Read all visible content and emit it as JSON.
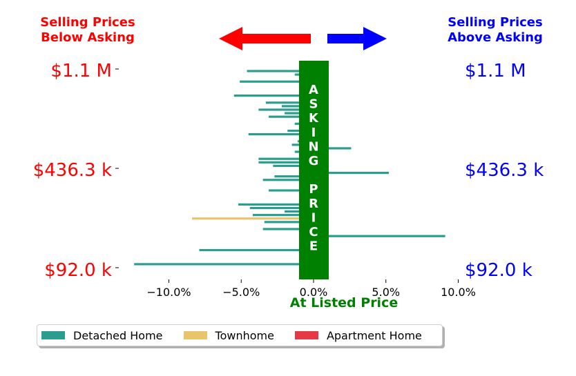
{
  "header": {
    "left_title": [
      "Selling Prices",
      "Below Asking"
    ],
    "right_title": [
      "Selling Prices",
      "Above Asking"
    ]
  },
  "colors": {
    "below": "#ff0000",
    "above": "#0000ff",
    "asking": "#008000",
    "detached": "#2a9d8f",
    "townhome": "#e9c46a",
    "apartment": "#e63946"
  },
  "chart_data": {
    "type": "bar",
    "orientation": "horizontal",
    "xlabel": "At Listed Price",
    "xlim": [
      -12.5,
      10.0
    ],
    "x_ticks": [
      -10,
      -5,
      0,
      5,
      10
    ],
    "x_tick_labels": [
      "−10.0%",
      "−5.0%",
      "0.0%",
      "5.0%",
      "10.0%"
    ],
    "y_tick_labels_left": [
      "$1.1 M",
      "$436.3 k",
      "$92.0 k"
    ],
    "y_tick_labels_right": [
      "$1.1 M",
      "$436.3 k",
      "$92.0 k"
    ],
    "asking_band_label": "ASKING PRICE",
    "legend": [
      {
        "name": "Detached Home",
        "color": "#2a9d8f"
      },
      {
        "name": "Townhome",
        "color": "#e9c46a"
      },
      {
        "name": "Apartment Home",
        "color": "#e63946"
      }
    ],
    "series_order": "top to bottom, highest price first",
    "bars": [
      {
        "value": -4.6,
        "type": "Detached Home"
      },
      {
        "value": -1.3,
        "type": "Detached Home"
      },
      {
        "value": 0.8,
        "type": "Detached Home"
      },
      {
        "value": -5.1,
        "type": "Detached Home"
      },
      {
        "value": 0.8,
        "type": "Detached Home"
      },
      {
        "value": 0.8,
        "type": "Detached Home"
      },
      {
        "value": 0.8,
        "type": "Detached Home"
      },
      {
        "value": -5.5,
        "type": "Detached Home"
      },
      {
        "value": 0.8,
        "type": "Detached Home"
      },
      {
        "value": -3.3,
        "type": "Detached Home"
      },
      {
        "value": -2.2,
        "type": "Detached Home"
      },
      {
        "value": -3.8,
        "type": "Detached Home"
      },
      {
        "value": -2.0,
        "type": "Detached Home"
      },
      {
        "value": -3.1,
        "type": "Detached Home"
      },
      {
        "value": 0.8,
        "type": "Detached Home"
      },
      {
        "value": -1.3,
        "type": "Detached Home"
      },
      {
        "value": 0.8,
        "type": "Detached Home"
      },
      {
        "value": -1.8,
        "type": "Detached Home"
      },
      {
        "value": -4.5,
        "type": "Detached Home"
      },
      {
        "value": 0.8,
        "type": "Detached Home"
      },
      {
        "value": -1.1,
        "type": "Detached Home"
      },
      {
        "value": -1.5,
        "type": "Detached Home"
      },
      {
        "value": 2.6,
        "type": "Detached Home"
      },
      {
        "value": -1.3,
        "type": "Detached Home"
      },
      {
        "value": 0.8,
        "type": "Detached Home"
      },
      {
        "value": -3.8,
        "type": "Detached Home"
      },
      {
        "value": -3.8,
        "type": "Detached Home"
      },
      {
        "value": -2.8,
        "type": "Detached Home"
      },
      {
        "value": 0.8,
        "type": "Detached Home"
      },
      {
        "value": 5.2,
        "type": "Detached Home"
      },
      {
        "value": -2.7,
        "type": "Detached Home"
      },
      {
        "value": -3.5,
        "type": "Detached Home"
      },
      {
        "value": 0.8,
        "type": "Detached Home"
      },
      {
        "value": 0.8,
        "type": "Detached Home"
      },
      {
        "value": -3.1,
        "type": "Detached Home"
      },
      {
        "value": 0.8,
        "type": "Detached Home"
      },
      {
        "value": 0.8,
        "type": "Apartment Home"
      },
      {
        "value": 0.8,
        "type": "Detached Home"
      },
      {
        "value": -5.2,
        "type": "Detached Home"
      },
      {
        "value": -4.4,
        "type": "Detached Home"
      },
      {
        "value": -2.0,
        "type": "Detached Home"
      },
      {
        "value": -4.2,
        "type": "Detached Home"
      },
      {
        "value": -8.4,
        "type": "Townhome"
      },
      {
        "value": -3.4,
        "type": "Detached Home"
      },
      {
        "value": 0.8,
        "type": "Apartment Home"
      },
      {
        "value": -3.5,
        "type": "Detached Home"
      },
      {
        "value": 0.8,
        "type": "Detached Home"
      },
      {
        "value": 9.1,
        "type": "Detached Home"
      },
      {
        "value": 0.8,
        "type": "Detached Home"
      },
      {
        "value": 0.8,
        "type": "Detached Home"
      },
      {
        "value": 0.8,
        "type": "Detached Home"
      },
      {
        "value": -7.9,
        "type": "Detached Home"
      },
      {
        "value": 0.8,
        "type": "Detached Home"
      },
      {
        "value": 0.8,
        "type": "Detached Home"
      },
      {
        "value": 0.8,
        "type": "Detached Home"
      },
      {
        "value": -12.4,
        "type": "Detached Home"
      },
      {
        "value": 0.8,
        "type": "Detached Home"
      }
    ]
  }
}
